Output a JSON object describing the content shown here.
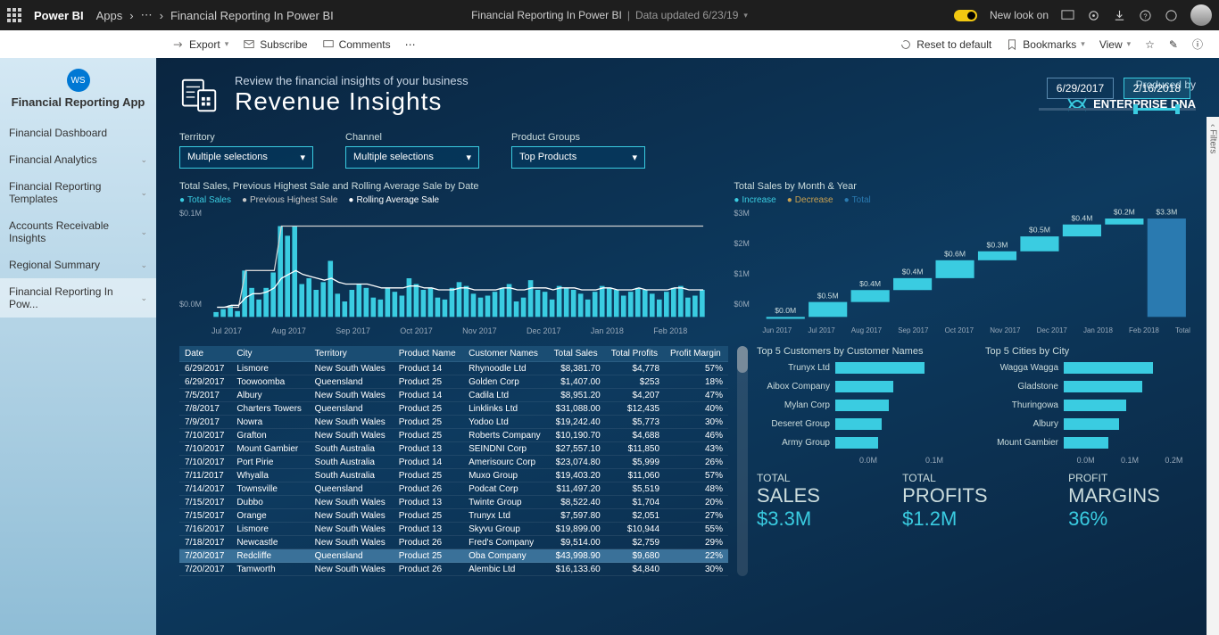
{
  "topbar": {
    "brand": "Power BI",
    "apps": "Apps",
    "crumb": "Financial Reporting In Power BI",
    "centertitle": "Financial Reporting In Power BI",
    "updated": "Data updated 6/23/19",
    "newlook": "New look on"
  },
  "toolbar": {
    "export": "Export",
    "subscribe": "Subscribe",
    "comments": "Comments",
    "reset": "Reset to default",
    "bookmarks": "Bookmarks",
    "view": "View"
  },
  "sidebar": {
    "ws": "WS",
    "apptitle": "Financial Reporting App",
    "items": [
      {
        "label": "Financial Dashboard",
        "exp": false
      },
      {
        "label": "Financial Analytics",
        "exp": true
      },
      {
        "label": "Financial Reporting Templates",
        "exp": true
      },
      {
        "label": "Accounts Receivable Insights",
        "exp": true
      },
      {
        "label": "Regional Summary",
        "exp": true
      },
      {
        "label": "Financial Reporting In Pow...",
        "exp": true,
        "active": true
      }
    ]
  },
  "report": {
    "subtitle": "Review the financial insights of your business",
    "title": "Revenue Insights",
    "produced": "Produced by",
    "brand": "ENTERPRISE DNA",
    "date1": "6/29/2017",
    "date2": "2/16/2018",
    "filters": [
      {
        "label": "Territory",
        "val": "Multiple selections"
      },
      {
        "label": "Channel",
        "val": "Multiple selections"
      },
      {
        "label": "Product Groups",
        "val": "Top Products"
      }
    ],
    "chart1": {
      "title": "Total Sales, Previous Highest Sale and Rolling Average Sale by Date",
      "legend": [
        "Total Sales",
        "Previous Highest Sale",
        "Rolling Average Sale"
      ],
      "yticks": [
        "$0.1M",
        "$0.0M"
      ],
      "xticks": [
        "Jul 2017",
        "Aug 2017",
        "Sep 2017",
        "Oct 2017",
        "Nov 2017",
        "Dec 2017",
        "Jan 2018",
        "Feb 2018"
      ],
      "bars": [
        5,
        8,
        12,
        6,
        48,
        30,
        18,
        30,
        46,
        94,
        84,
        94,
        34,
        40,
        28,
        36,
        58,
        24,
        16,
        28,
        34,
        30,
        20,
        18,
        30,
        26,
        22,
        40,
        34,
        28,
        30,
        20,
        18,
        30,
        36,
        32,
        24,
        20,
        22,
        26,
        30,
        34,
        16,
        20,
        38,
        28,
        26,
        18,
        32,
        30,
        28,
        24,
        18,
        26,
        32,
        30,
        28,
        22,
        26,
        30,
        28,
        24,
        18,
        26,
        30,
        32,
        20,
        22,
        28
      ],
      "highest": [
        10,
        10,
        10,
        10,
        48,
        48,
        48,
        48,
        48,
        94,
        94,
        94,
        94,
        94,
        94,
        94,
        94,
        94,
        94,
        94,
        94,
        94,
        94,
        94,
        94,
        94,
        94,
        94,
        94,
        94,
        94,
        94,
        94,
        94,
        94,
        94,
        94,
        94,
        94,
        94,
        94,
        94,
        94,
        94,
        94,
        94,
        94,
        94,
        94,
        94,
        94,
        94,
        94,
        94,
        94,
        94,
        94,
        94,
        94,
        94,
        94,
        94,
        94,
        94,
        94,
        94,
        94,
        94,
        94
      ],
      "rolling": [
        10,
        10,
        12,
        12,
        20,
        24,
        24,
        26,
        30,
        40,
        44,
        48,
        44,
        42,
        40,
        38,
        40,
        36,
        34,
        34,
        34,
        34,
        32,
        30,
        30,
        30,
        30,
        32,
        32,
        30,
        30,
        28,
        28,
        28,
        30,
        30,
        28,
        28,
        28,
        28,
        30,
        30,
        28,
        28,
        30,
        30,
        30,
        28,
        30,
        30,
        30,
        28,
        28,
        28,
        30,
        30,
        28,
        28,
        28,
        30,
        28,
        28,
        28,
        28,
        30,
        30,
        28,
        28,
        28
      ]
    },
    "chart2": {
      "title": "Total Sales by Month & Year",
      "legend": [
        "Increase",
        "Decrease",
        "Total"
      ],
      "yticks": [
        "$3M",
        "$2M",
        "$1M",
        "$0M"
      ],
      "months": [
        "Jun 2017",
        "Jul 2017",
        "Aug 2017",
        "Sep 2017",
        "Oct 2017",
        "Nov 2017",
        "Dec 2017",
        "Jan 2018",
        "Feb 2018",
        "Total"
      ],
      "labels": [
        "$0.0M",
        "$0.5M",
        "$0.4M",
        "$0.4M",
        "$0.6M",
        "$0.3M",
        "$0.5M",
        "$0.4M",
        "$0.2M",
        "$3.3M"
      ],
      "cum": [
        0.0,
        0.5,
        0.9,
        1.3,
        1.9,
        2.2,
        2.7,
        3.1,
        3.3
      ],
      "total": 3.3
    },
    "table": {
      "cols": [
        "Date",
        "City",
        "Territory",
        "Product Name",
        "Customer Names",
        "Total Sales",
        "Total Profits",
        "Profit Margin"
      ],
      "rows": [
        [
          "6/29/2017",
          "Lismore",
          "New South Wales",
          "Product 14",
          "Rhynoodle Ltd",
          "$8,381.70",
          "$4,778",
          "57%"
        ],
        [
          "6/29/2017",
          "Toowoomba",
          "Queensland",
          "Product 25",
          "Golden Corp",
          "$1,407.00",
          "$253",
          "18%"
        ],
        [
          "7/5/2017",
          "Albury",
          "New South Wales",
          "Product 14",
          "Cadila Ltd",
          "$8,951.20",
          "$4,207",
          "47%"
        ],
        [
          "7/8/2017",
          "Charters Towers",
          "Queensland",
          "Product 25",
          "Linklinks Ltd",
          "$31,088.00",
          "$12,435",
          "40%"
        ],
        [
          "7/9/2017",
          "Nowra",
          "New South Wales",
          "Product 25",
          "Yodoo Ltd",
          "$19,242.40",
          "$5,773",
          "30%"
        ],
        [
          "7/10/2017",
          "Grafton",
          "New South Wales",
          "Product 25",
          "Roberts Company",
          "$10,190.70",
          "$4,688",
          "46%"
        ],
        [
          "7/10/2017",
          "Mount Gambier",
          "South Australia",
          "Product 13",
          "SEINDNI Corp",
          "$27,557.10",
          "$11,850",
          "43%"
        ],
        [
          "7/10/2017",
          "Port Pirie",
          "South Australia",
          "Product 14",
          "Amerisourc Corp",
          "$23,074.80",
          "$5,999",
          "26%"
        ],
        [
          "7/11/2017",
          "Whyalla",
          "South Australia",
          "Product 25",
          "Muxo Group",
          "$19,403.20",
          "$11,060",
          "57%"
        ],
        [
          "7/14/2017",
          "Townsville",
          "Queensland",
          "Product 26",
          "Podcat Corp",
          "$11,497.20",
          "$5,519",
          "48%"
        ],
        [
          "7/15/2017",
          "Dubbo",
          "New South Wales",
          "Product 13",
          "Twinte Group",
          "$8,522.40",
          "$1,704",
          "20%"
        ],
        [
          "7/15/2017",
          "Orange",
          "New South Wales",
          "Product 25",
          "Trunyx Ltd",
          "$7,597.80",
          "$2,051",
          "27%"
        ],
        [
          "7/16/2017",
          "Lismore",
          "New South Wales",
          "Product 13",
          "Skyvu Group",
          "$19,899.00",
          "$10,944",
          "55%"
        ],
        [
          "7/18/2017",
          "Newcastle",
          "New South Wales",
          "Product 26",
          "Fred's Company",
          "$9,514.00",
          "$2,759",
          "29%"
        ],
        [
          "7/20/2017",
          "Redcliffe",
          "Queensland",
          "Product 25",
          "Oba Company",
          "$43,998.90",
          "$9,680",
          "22%",
          "hl"
        ],
        [
          "7/20/2017",
          "Tamworth",
          "New South Wales",
          "Product 26",
          "Alembic Ltd",
          "$16,133.60",
          "$4,840",
          "30%"
        ]
      ]
    },
    "top5cust": {
      "title": "Top 5 Customers by Customer Names",
      "items": [
        {
          "name": "Trunyx Ltd",
          "v": 100
        },
        {
          "name": "Aibox Company",
          "v": 65
        },
        {
          "name": "Mylan Corp",
          "v": 60
        },
        {
          "name": "Deseret Group",
          "v": 52
        },
        {
          "name": "Army Group",
          "v": 48
        }
      ],
      "xticks": [
        "0.0M",
        "0.1M"
      ]
    },
    "top5city": {
      "title": "Top 5 Cities by City",
      "items": [
        {
          "name": "Wagga Wagga",
          "v": 100
        },
        {
          "name": "Gladstone",
          "v": 88
        },
        {
          "name": "Thuringowa",
          "v": 70
        },
        {
          "name": "Albury",
          "v": 62
        },
        {
          "name": "Mount Gambier",
          "v": 50
        }
      ],
      "xticks": [
        "0.0M",
        "0.1M",
        "0.2M"
      ]
    },
    "kpis": [
      {
        "label": "TOTAL",
        "label2": "SALES",
        "val": "$3.3M"
      },
      {
        "label": "TOTAL",
        "label2": "PROFITS",
        "val": "$1.2M"
      },
      {
        "label": "PROFIT",
        "label2": "MARGINS",
        "val": "36%"
      }
    ]
  },
  "rightedge": "‹ Filters"
}
